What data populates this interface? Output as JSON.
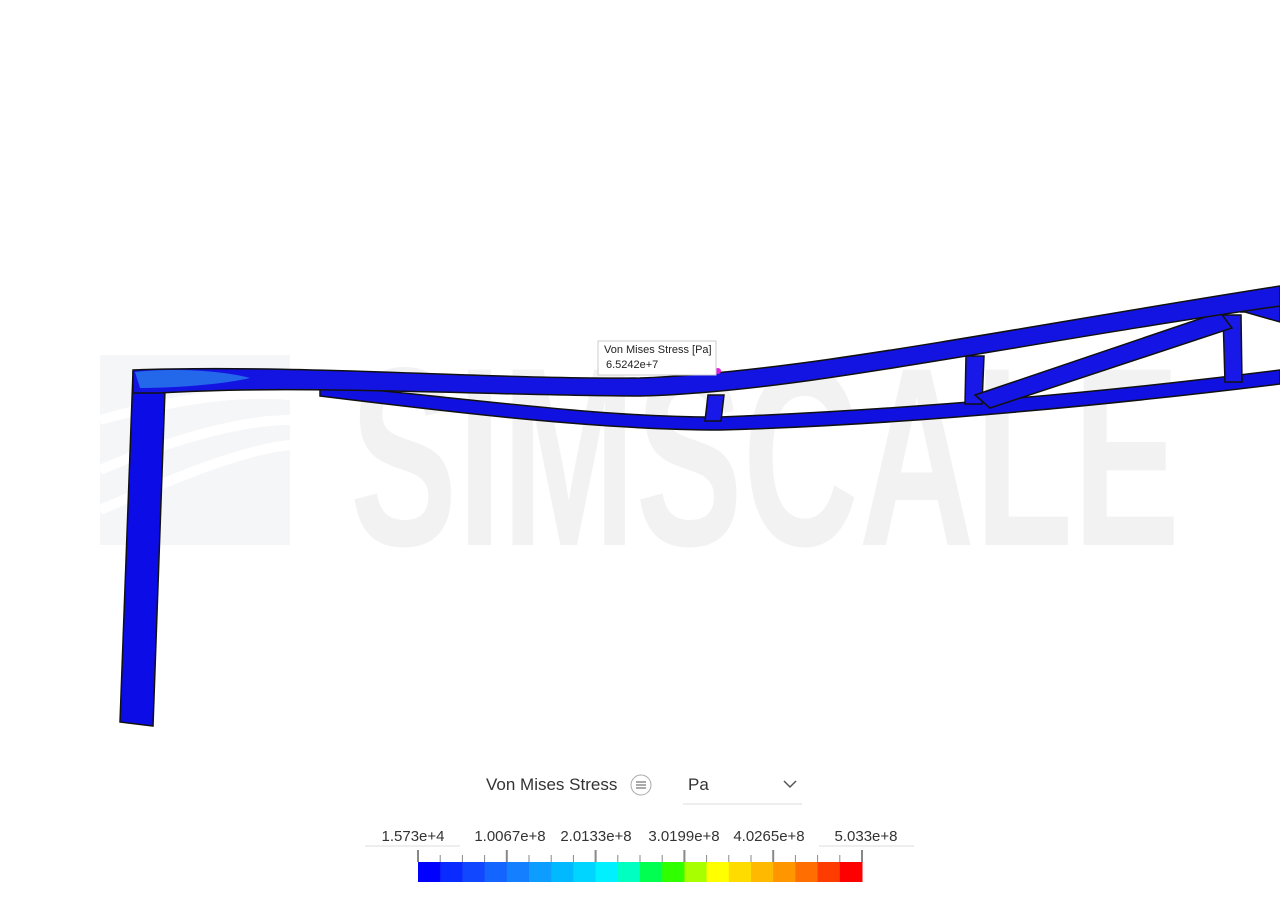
{
  "watermark": "SIMSCALE",
  "probe": {
    "label": "Von Mises Stress [Pa]",
    "value": "6.5242e+7"
  },
  "legend": {
    "title": "Von Mises Stress",
    "unit": "Pa",
    "tick_labels": [
      "1.573e+4",
      "1.0067e+8",
      "2.0133e+8",
      "3.0199e+8",
      "4.0265e+8",
      "5.033e+8"
    ],
    "colors": [
      "#0000ff",
      "#0a2bff",
      "#1148ff",
      "#1464ff",
      "#1480ff",
      "#0c9dff",
      "#00b9ff",
      "#00d5ff",
      "#00f0ff",
      "#00ffc0",
      "#00ff50",
      "#30ff00",
      "#a8ff00",
      "#ffff00",
      "#ffdc00",
      "#ffba00",
      "#ff9600",
      "#ff6e00",
      "#ff3c00",
      "#ff0000"
    ]
  }
}
